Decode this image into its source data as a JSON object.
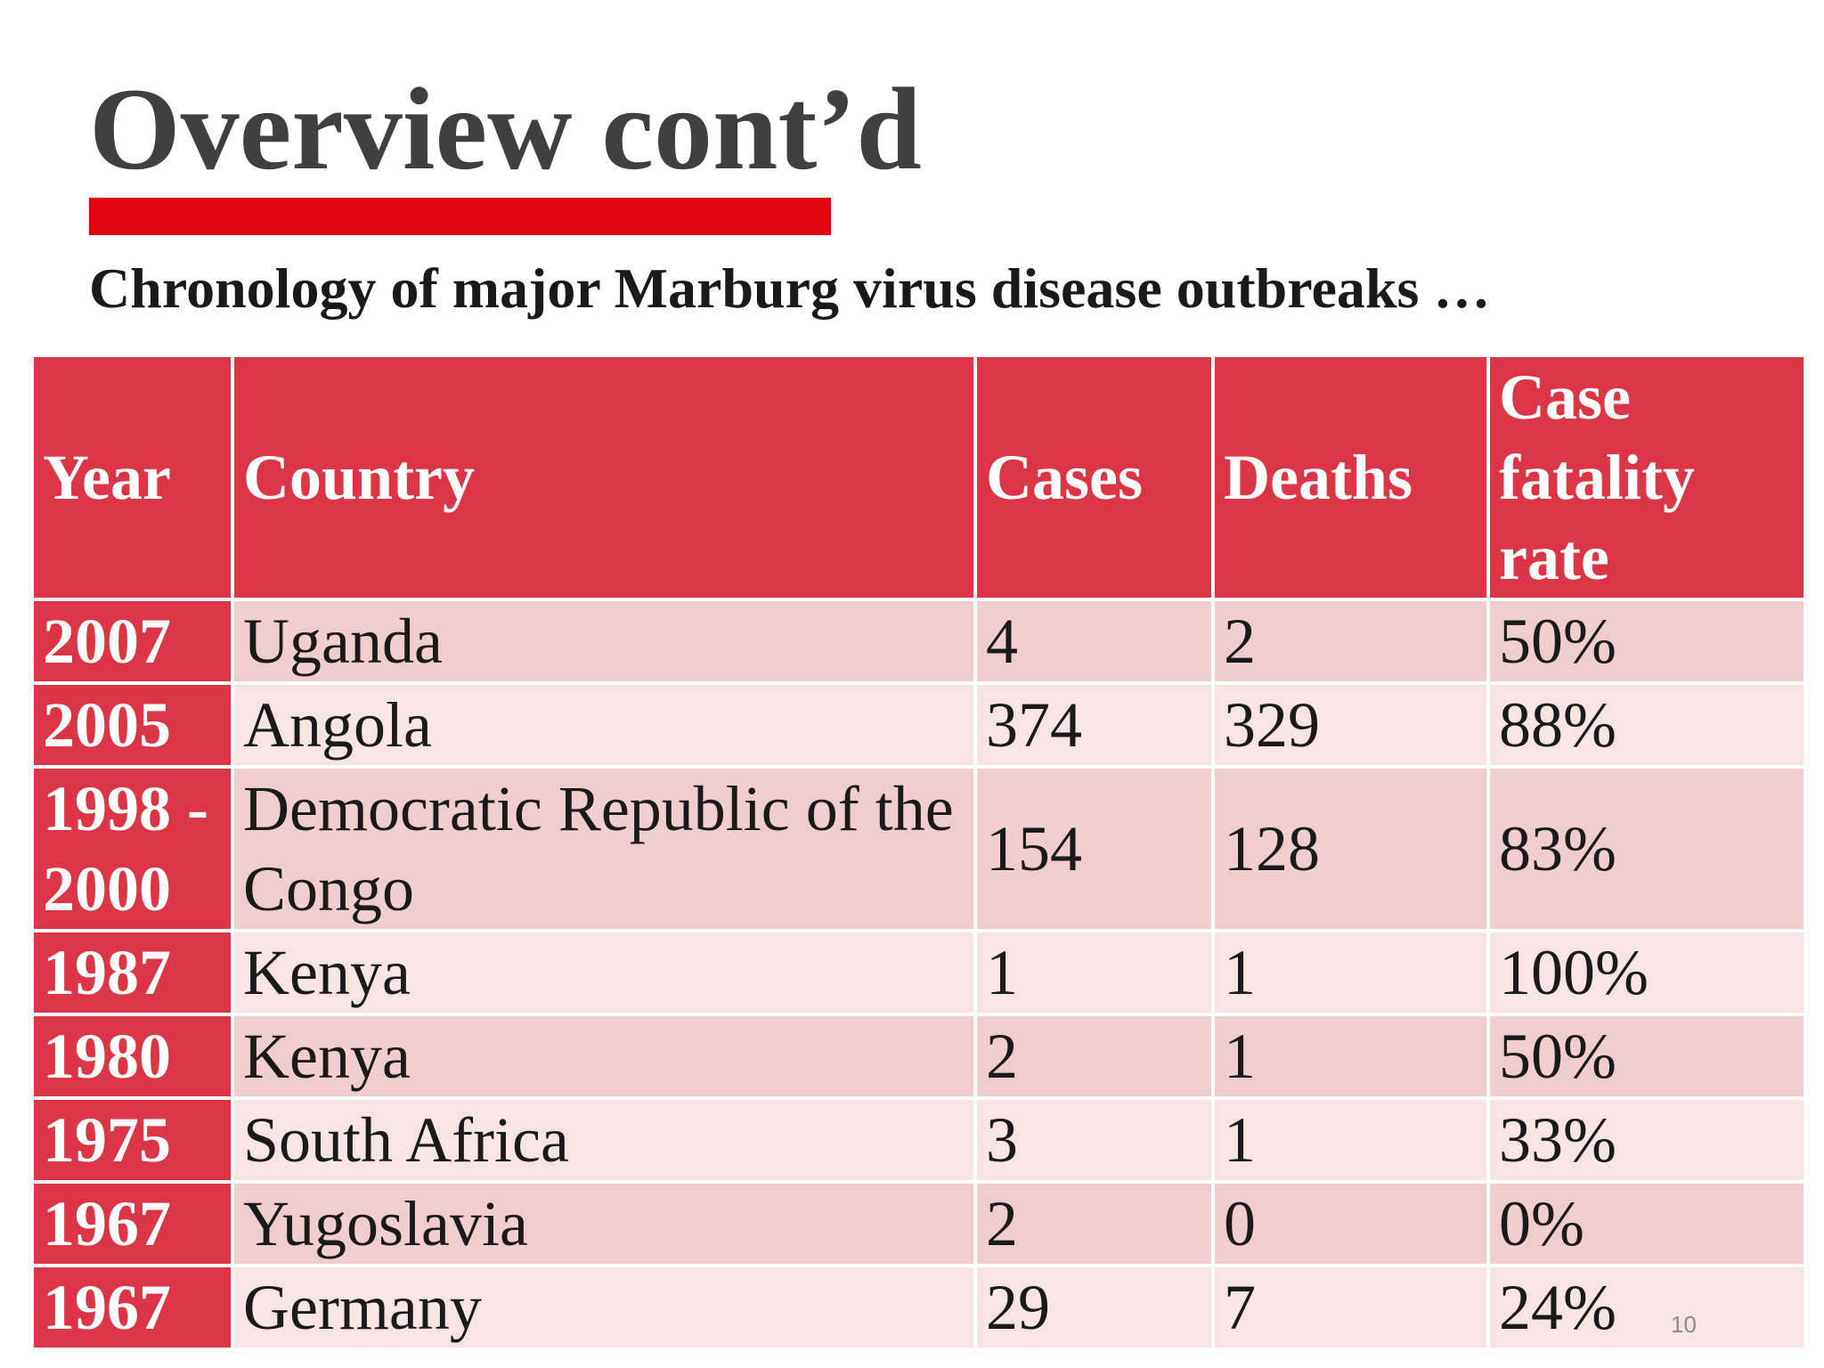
{
  "slide": {
    "title": "Overview cont’d",
    "subtitle": "Chronology of major Marburg virus disease outbreaks …",
    "page_number": "10"
  },
  "colors": {
    "accent_bar": "#e30613",
    "header_fill": "#dc3545",
    "row_fill_dark": "#f0cdce",
    "row_fill_light": "#f7e5e6",
    "title_text": "#404040"
  },
  "table": {
    "headers": {
      "year": "Year",
      "country": "Country",
      "cases": "Cases",
      "deaths": "Deaths",
      "cfr": "Case fatality rate"
    },
    "rows": [
      {
        "year": "2007",
        "country": "Uganda",
        "cases": "4",
        "deaths": "2",
        "cfr": "50%"
      },
      {
        "year": "2005",
        "country": "Angola",
        "cases": "374",
        "deaths": "329",
        "cfr": "88%"
      },
      {
        "year": "1998 - 2000",
        "country": "Democratic Republic of the Congo",
        "cases": "154",
        "deaths": "128",
        "cfr": "83%"
      },
      {
        "year": "1987",
        "country": "Kenya",
        "cases": "1",
        "deaths": "1",
        "cfr": "100%"
      },
      {
        "year": "1980",
        "country": "Kenya",
        "cases": "2",
        "deaths": "1",
        "cfr": "50%"
      },
      {
        "year": "1975",
        "country": "South Africa",
        "cases": "3",
        "deaths": "1",
        "cfr": "33%"
      },
      {
        "year": "1967",
        "country": "Yugoslavia",
        "cases": "2",
        "deaths": "0",
        "cfr": "0%"
      },
      {
        "year": "1967",
        "country": "Germany",
        "cases": "29",
        "deaths": "7",
        "cfr": "24%"
      }
    ]
  }
}
